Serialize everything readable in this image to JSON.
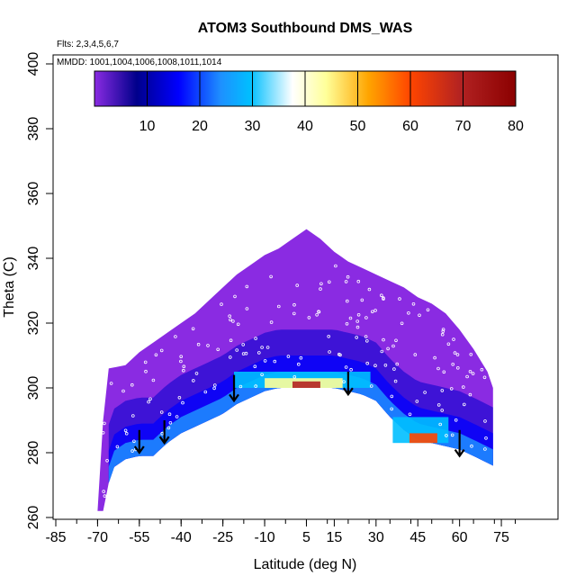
{
  "chart_data": {
    "type": "heatmap",
    "title": "ATOM3 Southbound DMS_WAS",
    "annotations": [
      "Flts: 2,3,4,5,6,7",
      "MMDD: 1001,1004,1006,1008,1011,1014"
    ],
    "xlabel": "Latitude (deg N)",
    "ylabel": "Theta (C)",
    "xlim": [
      -85,
      85
    ],
    "ylim": [
      260,
      400
    ],
    "xticks": [
      -85,
      -70,
      -55,
      -40,
      -25,
      -10,
      5,
      15,
      30,
      45,
      60,
      75
    ],
    "xtick_labels": [
      "-85",
      "-70",
      "-55",
      "-40",
      "-25",
      "-10",
      "5",
      "15",
      "30",
      "45",
      "60",
      "75"
    ],
    "yticks": [
      260,
      280,
      300,
      320,
      340,
      360,
      380,
      400
    ],
    "ytick_labels": [
      "260",
      "280",
      "300",
      "320",
      "340",
      "360",
      "380",
      "400"
    ],
    "colorbar": {
      "range": [
        0,
        80
      ],
      "ticks": [
        10,
        20,
        30,
        40,
        50,
        60,
        70,
        80
      ],
      "tick_labels": [
        "10",
        "20",
        "30",
        "40",
        "50",
        "60",
        "70",
        "80"
      ],
      "colors": [
        "#8a2be2",
        "#00008b",
        "#0000ff",
        "#1e90ff",
        "#00bfff",
        "#ffffff",
        "#ffff99",
        "#ffa500",
        "#ff4500",
        "#b22222",
        "#8b0000"
      ]
    },
    "coverage_top": [
      {
        "lat": -70,
        "theta": 262
      },
      {
        "lat": -68,
        "theta": 290
      },
      {
        "lat": -66,
        "theta": 306
      },
      {
        "lat": -60,
        "theta": 307
      },
      {
        "lat": -55,
        "theta": 311
      },
      {
        "lat": -50,
        "theta": 314
      },
      {
        "lat": -45,
        "theta": 317
      },
      {
        "lat": -40,
        "theta": 320
      },
      {
        "lat": -35,
        "theta": 323
      },
      {
        "lat": -30,
        "theta": 327
      },
      {
        "lat": -25,
        "theta": 331
      },
      {
        "lat": -20,
        "theta": 335
      },
      {
        "lat": -15,
        "theta": 338
      },
      {
        "lat": -10,
        "theta": 341
      },
      {
        "lat": -5,
        "theta": 343
      },
      {
        "lat": 0,
        "theta": 346
      },
      {
        "lat": 5,
        "theta": 349
      },
      {
        "lat": 10,
        "theta": 346
      },
      {
        "lat": 15,
        "theta": 342
      },
      {
        "lat": 20,
        "theta": 339
      },
      {
        "lat": 25,
        "theta": 337
      },
      {
        "lat": 30,
        "theta": 335
      },
      {
        "lat": 35,
        "theta": 333
      },
      {
        "lat": 40,
        "theta": 331
      },
      {
        "lat": 45,
        "theta": 328
      },
      {
        "lat": 50,
        "theta": 326
      },
      {
        "lat": 55,
        "theta": 323
      },
      {
        "lat": 60,
        "theta": 318
      },
      {
        "lat": 65,
        "theta": 312
      },
      {
        "lat": 70,
        "theta": 305
      },
      {
        "lat": 72,
        "theta": 300
      }
    ],
    "coverage_bottom": [
      {
        "lat": 72,
        "theta": 276
      },
      {
        "lat": 65,
        "theta": 279
      },
      {
        "lat": 60,
        "theta": 281
      },
      {
        "lat": 55,
        "theta": 282
      },
      {
        "lat": 50,
        "theta": 283
      },
      {
        "lat": 45,
        "theta": 284
      },
      {
        "lat": 40,
        "theta": 287
      },
      {
        "lat": 35,
        "theta": 291
      },
      {
        "lat": 30,
        "theta": 296
      },
      {
        "lat": 25,
        "theta": 298
      },
      {
        "lat": 20,
        "theta": 299
      },
      {
        "lat": 15,
        "theta": 300
      },
      {
        "lat": 10,
        "theta": 300
      },
      {
        "lat": 5,
        "theta": 300
      },
      {
        "lat": 0,
        "theta": 300
      },
      {
        "lat": -5,
        "theta": 300
      },
      {
        "lat": -10,
        "theta": 299
      },
      {
        "lat": -15,
        "theta": 297
      },
      {
        "lat": -20,
        "theta": 295
      },
      {
        "lat": -25,
        "theta": 292
      },
      {
        "lat": -30,
        "theta": 290
      },
      {
        "lat": -35,
        "theta": 288
      },
      {
        "lat": -40,
        "theta": 286
      },
      {
        "lat": -45,
        "theta": 283
      },
      {
        "lat": -50,
        "theta": 279
      },
      {
        "lat": -55,
        "theta": 279
      },
      {
        "lat": -60,
        "theta": 278
      },
      {
        "lat": -65,
        "theta": 275
      },
      {
        "lat": -68,
        "theta": 262
      },
      {
        "lat": -70,
        "theta": 262
      }
    ],
    "high_bands": [
      {
        "lat0": -21,
        "lat1": 28,
        "theta0": 300,
        "theta1": 305,
        "value": 30
      },
      {
        "lat0": -10,
        "lat1": 18,
        "theta0": 300,
        "theta1": 303,
        "value": 50
      },
      {
        "lat0": 0,
        "lat1": 10,
        "theta0": 300,
        "theta1": 302,
        "value": 70
      },
      {
        "lat0": 36,
        "lat1": 56,
        "theta0": 283,
        "theta1": 291,
        "value": 30
      },
      {
        "lat0": 42,
        "lat1": 52,
        "theta0": 283,
        "theta1": 286,
        "value": 60
      }
    ],
    "arrows": [
      {
        "lat": -55,
        "theta0": 287,
        "theta1": 280
      },
      {
        "lat": -46,
        "theta0": 290,
        "theta1": 283
      },
      {
        "lat": -21,
        "theta0": 304,
        "theta1": 296
      },
      {
        "lat": 20,
        "theta0": 305,
        "theta1": 298
      },
      {
        "lat": 60,
        "theta0": 287,
        "theta1": 279
      }
    ]
  }
}
